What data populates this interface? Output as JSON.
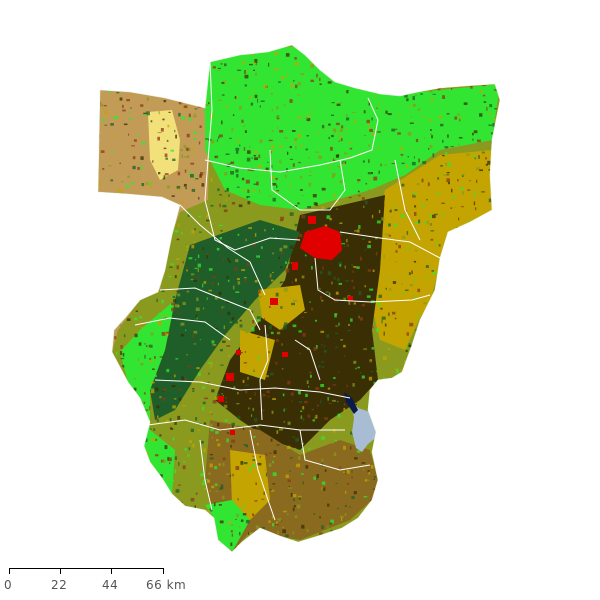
{
  "map": {
    "land_cover_colors": {
      "forest_light": "#33e533",
      "forest_dark": "#1f5e28",
      "shrub_dark": "#3a2f04",
      "cropland": "#c4a400",
      "mosaic_olive": "#8a9a1e",
      "grassland_tan": "#c29b56",
      "sand_yellow": "#f2e17a",
      "bare_brown": "#8a3a18",
      "urban": "#e00000",
      "water": "#a8bcd4",
      "water_dark": "#0a1a4a",
      "boundary": "#ffffff"
    }
  },
  "scale": {
    "labels": [
      "0",
      "22",
      "44",
      "66 km"
    ]
  }
}
